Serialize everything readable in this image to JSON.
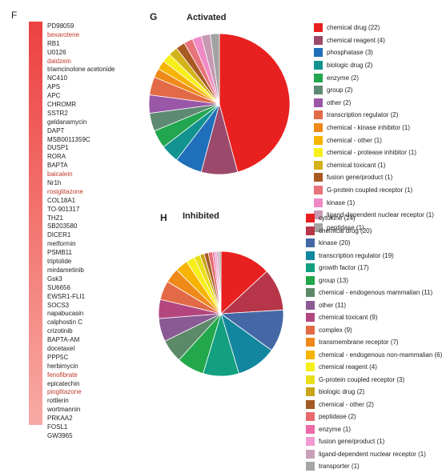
{
  "panels": {
    "f_letter": "F",
    "g_letter": "G",
    "h_letter": "H"
  },
  "gene_list": [
    {
      "name": "PD98059",
      "highlight": false
    },
    {
      "name": "bexarotene",
      "highlight": true
    },
    {
      "name": "RB1",
      "highlight": false
    },
    {
      "name": "U0126",
      "highlight": false
    },
    {
      "name": "daidzein",
      "highlight": true
    },
    {
      "name": "triamcinolone acetonide",
      "highlight": false
    },
    {
      "name": "NC410",
      "highlight": false
    },
    {
      "name": "APS",
      "highlight": false
    },
    {
      "name": "APC",
      "highlight": false
    },
    {
      "name": "CHROMR",
      "highlight": false
    },
    {
      "name": "SSTR2",
      "highlight": false
    },
    {
      "name": "geldanamycin",
      "highlight": false
    },
    {
      "name": "DAPT",
      "highlight": false
    },
    {
      "name": "MSB0011359C",
      "highlight": false
    },
    {
      "name": "DUSP1",
      "highlight": false
    },
    {
      "name": "RORA",
      "highlight": false
    },
    {
      "name": "BAPTA",
      "highlight": false
    },
    {
      "name": "baicalein",
      "highlight": true
    },
    {
      "name": "Nr1h",
      "highlight": false
    },
    {
      "name": "rosiglitazone",
      "highlight": true
    },
    {
      "name": "COL18A1",
      "highlight": false
    },
    {
      "name": "TO-901317",
      "highlight": false
    },
    {
      "name": "THZ1",
      "highlight": false
    },
    {
      "name": "SB203580",
      "highlight": false
    },
    {
      "name": "DICER1",
      "highlight": false
    },
    {
      "name": "metformin",
      "highlight": false
    },
    {
      "name": "PSMB11",
      "highlight": false
    },
    {
      "name": "triptolide",
      "highlight": false
    },
    {
      "name": "mirdametinib",
      "highlight": false
    },
    {
      "name": "Gsk3",
      "highlight": false
    },
    {
      "name": "SU6656",
      "highlight": false
    },
    {
      "name": "EWSR1-FLI1",
      "highlight": false
    },
    {
      "name": "SOCS3",
      "highlight": false
    },
    {
      "name": "napabucasin",
      "highlight": false
    },
    {
      "name": "calphostin C",
      "highlight": false
    },
    {
      "name": "crizotinib",
      "highlight": false
    },
    {
      "name": "BAPTA-AM",
      "highlight": false
    },
    {
      "name": "docetaxel",
      "highlight": false
    },
    {
      "name": "PPP5C",
      "highlight": false
    },
    {
      "name": "herbimycin",
      "highlight": false
    },
    {
      "name": "fenofibrate",
      "highlight": true
    },
    {
      "name": "epicatechin",
      "highlight": false
    },
    {
      "name": "pioglitazone",
      "highlight": true
    },
    {
      "name": "rottlerin",
      "highlight": false
    },
    {
      "name": "wortmannin",
      "highlight": false
    },
    {
      "name": "PRKAA2",
      "highlight": false
    },
    {
      "name": "FOSL1",
      "highlight": false
    },
    {
      "name": "GW3965",
      "highlight": false
    }
  ],
  "chart_data": [
    {
      "type": "pie",
      "title": "Activated",
      "legend": "right",
      "slices": [
        {
          "label": "chemical drug (22)",
          "value": 22,
          "color": "#e8201f"
        },
        {
          "label": "chemical reagent (4)",
          "value": 4,
          "color": "#9b4a6c"
        },
        {
          "label": "phosphatase (3)",
          "value": 3,
          "color": "#1f6fba"
        },
        {
          "label": "biologic drug (2)",
          "value": 2,
          "color": "#12938f"
        },
        {
          "label": "enzyme (2)",
          "value": 2,
          "color": "#23a650"
        },
        {
          "label": "group (2)",
          "value": 2,
          "color": "#5e8a73"
        },
        {
          "label": "other (2)",
          "value": 2,
          "color": "#9a57a8"
        },
        {
          "label": "transcription regulator (2)",
          "value": 2,
          "color": "#e36a47"
        },
        {
          "label": "chemical - kinase inhibitor (1)",
          "value": 1,
          "color": "#ef8a1a"
        },
        {
          "label": "chemical - other (1)",
          "value": 1,
          "color": "#f6b400"
        },
        {
          "label": "chemical - protease inhibitor (1)",
          "value": 1,
          "color": "#f7ef1a"
        },
        {
          "label": "chemical toxicant (1)",
          "value": 1,
          "color": "#d4b21a"
        },
        {
          "label": "fusion gene/product (1)",
          "value": 1,
          "color": "#a85a22"
        },
        {
          "label": "G-protein coupled receptor (1)",
          "value": 1,
          "color": "#e8737a"
        },
        {
          "label": "kinase (1)",
          "value": 1,
          "color": "#ee8ac5"
        },
        {
          "label": "ligand-dependent nuclear receptor (1)",
          "value": 1,
          "color": "#c799b3"
        },
        {
          "label": "peptidase (1)",
          "value": 1,
          "color": "#a3a3a3"
        }
      ]
    },
    {
      "type": "pie",
      "title": "Inhibited",
      "legend": "right",
      "slices": [
        {
          "label": "cytokine (24)",
          "value": 24,
          "color": "#e8201f"
        },
        {
          "label": "chemical drug (20)",
          "value": 20,
          "color": "#b73548"
        },
        {
          "label": "kinase (20)",
          "value": 20,
          "color": "#4468a6"
        },
        {
          "label": "transcription regulator (19)",
          "value": 19,
          "color": "#12869e"
        },
        {
          "label": "growth factor (17)",
          "value": 17,
          "color": "#13a080"
        },
        {
          "label": "group (13)",
          "value": 13,
          "color": "#22a84a"
        },
        {
          "label": "chemical - endogenous mammalian (11)",
          "value": 11,
          "color": "#5c8a68"
        },
        {
          "label": "other (11)",
          "value": 11,
          "color": "#8a5a94"
        },
        {
          "label": "chemical toxicant (9)",
          "value": 9,
          "color": "#b4467f"
        },
        {
          "label": "complex (9)",
          "value": 9,
          "color": "#e36a47"
        },
        {
          "label": "transmembrane receptor (7)",
          "value": 7,
          "color": "#ef8a1a"
        },
        {
          "label": "chemical - endogenous non-mammalian (6)",
          "value": 6,
          "color": "#f6b400"
        },
        {
          "label": "chemical reagent (4)",
          "value": 4,
          "color": "#f7ef1a"
        },
        {
          "label": "G-protein coupled receptor (3)",
          "value": 3,
          "color": "#e8df1a"
        },
        {
          "label": "biologic drug (2)",
          "value": 2,
          "color": "#c9a418"
        },
        {
          "label": "chemical - other (2)",
          "value": 2,
          "color": "#a35a24"
        },
        {
          "label": "peptidase (2)",
          "value": 2,
          "color": "#e86a6f"
        },
        {
          "label": "enzyme (1)",
          "value": 1,
          "color": "#ec6aa7"
        },
        {
          "label": "fusion gene/product (1)",
          "value": 1,
          "color": "#f09ad0"
        },
        {
          "label": "ligand-dependent nuclear receptor (1)",
          "value": 1,
          "color": "#c8a0bb"
        },
        {
          "label": "transporter (1)",
          "value": 1,
          "color": "#a5a5a5"
        }
      ]
    }
  ]
}
